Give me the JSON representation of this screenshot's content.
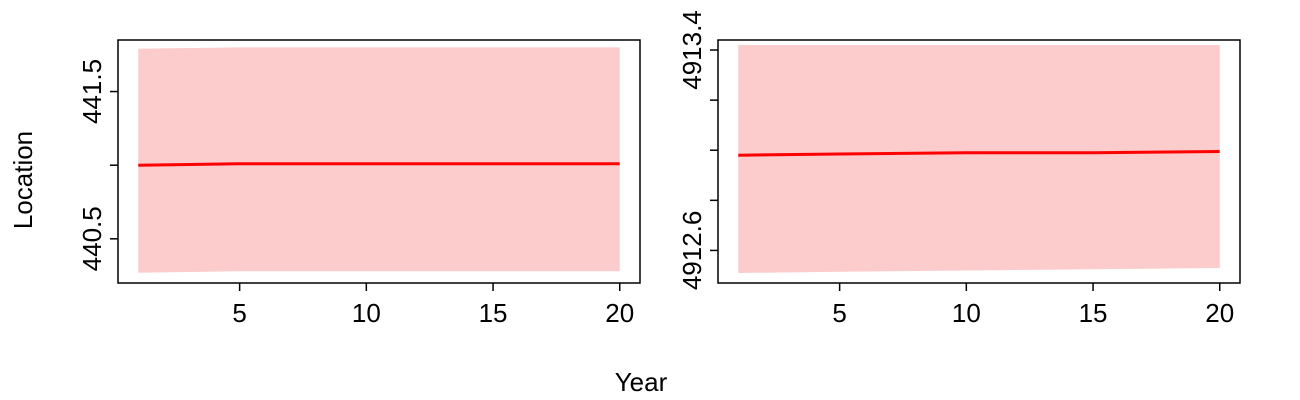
{
  "figure": {
    "xlabel": "Year",
    "ylabel": "Location"
  },
  "colors": {
    "line": "#ff0000",
    "band": "#fccbcb",
    "axis": "#000000"
  },
  "chart_data": [
    {
      "type": "line",
      "xlim": [
        0.2,
        20.8
      ],
      "ylim": [
        440.2,
        441.85
      ],
      "x_ticks": [
        5,
        10,
        15,
        20
      ],
      "y_ticks": [
        440.5,
        441.5
      ],
      "y_minor_ticks": [
        441.0
      ],
      "series": [
        {
          "x": [
            1,
            5,
            10,
            15,
            20
          ],
          "y": [
            441.0,
            441.01,
            441.01,
            441.01,
            441.01
          ],
          "lower": [
            440.27,
            440.28,
            440.28,
            440.28,
            440.28
          ],
          "upper": [
            441.79,
            441.8,
            441.8,
            441.8,
            441.8
          ]
        }
      ]
    },
    {
      "type": "line",
      "xlim": [
        0.2,
        20.8
      ],
      "ylim": [
        4912.47,
        4913.44
      ],
      "x_ticks": [
        5,
        10,
        15,
        20
      ],
      "y_ticks": [
        4912.6,
        4913.4
      ],
      "y_minor_ticks": [
        4912.8,
        4913.0,
        4913.2
      ],
      "series": [
        {
          "x": [
            1,
            5,
            10,
            15,
            20
          ],
          "y": [
            4912.98,
            4912.985,
            4912.99,
            4912.99,
            4912.995
          ],
          "lower": [
            4912.51,
            4912.515,
            4912.52,
            4912.525,
            4912.53
          ],
          "upper": [
            4913.42,
            4913.42,
            4913.42,
            4913.42,
            4913.42
          ]
        }
      ]
    }
  ]
}
